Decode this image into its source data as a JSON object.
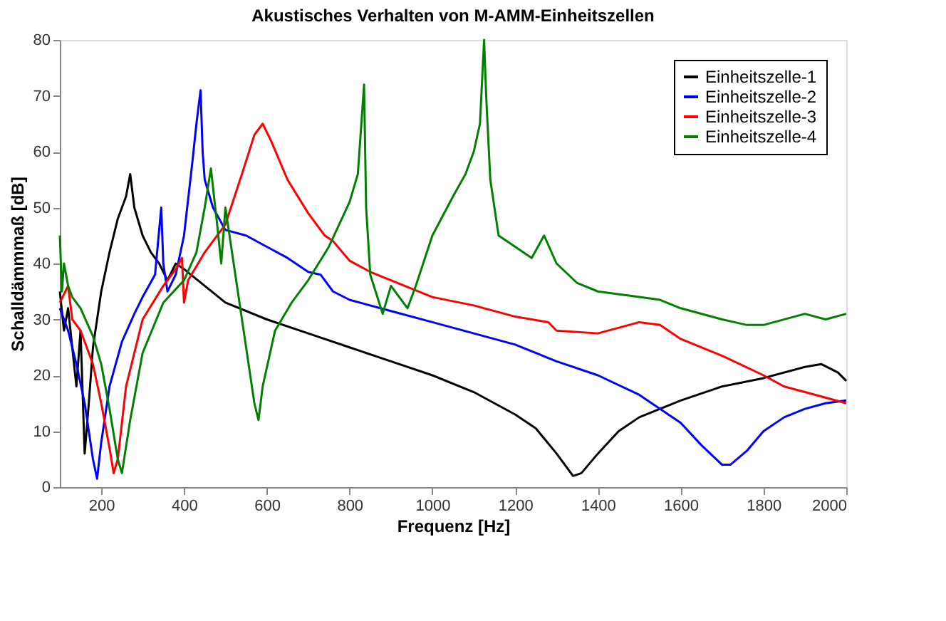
{
  "chart_data": {
    "type": "line",
    "title": "Akustisches Verhalten von M-AMM-Einheitszellen",
    "xlabel": "Frequenz [Hz]",
    "ylabel": "Schalldämmmaß [dB]",
    "xlim": [
      100,
      2000
    ],
    "xticks": [
      200,
      400,
      600,
      800,
      1000,
      1200,
      1400,
      1600,
      1800,
      2000
    ],
    "ylim": [
      0,
      80
    ],
    "yticks": [
      0,
      10,
      20,
      30,
      40,
      50,
      60,
      70,
      80
    ],
    "grid": false,
    "legend": "top right",
    "line_style": "solid",
    "marker": "none",
    "series": [
      {
        "name": "Einheitszelle-1",
        "color": "#000000",
        "x": [
          100,
          110,
          120,
          130,
          140,
          150,
          160,
          170,
          180,
          200,
          220,
          240,
          260,
          270,
          280,
          300,
          320,
          340,
          360,
          380,
          400,
          450,
          500,
          600,
          700,
          800,
          900,
          1000,
          1100,
          1200,
          1250,
          1300,
          1340,
          1360,
          1400,
          1450,
          1500,
          1600,
          1700,
          1800,
          1900,
          1940,
          1980,
          2000
        ],
        "values": [
          35,
          28,
          32,
          25,
          18,
          28,
          6,
          15,
          25,
          35,
          42,
          48,
          52,
          56,
          50,
          45,
          42,
          40,
          37,
          40,
          39,
          36,
          33,
          30,
          27.5,
          25,
          22.5,
          20,
          17,
          13,
          10.5,
          6,
          2,
          2.5,
          6,
          10,
          12.5,
          15.5,
          18,
          19.5,
          21.5,
          22,
          20.5,
          19
        ]
      },
      {
        "name": "Einheitszelle-2",
        "color": "#0000ff",
        "x": [
          100,
          120,
          140,
          160,
          180,
          190,
          200,
          220,
          250,
          280,
          300,
          330,
          345,
          350,
          360,
          380,
          400,
          420,
          430,
          440,
          445,
          450,
          470,
          500,
          550,
          600,
          650,
          700,
          730,
          760,
          800,
          900,
          1000,
          1100,
          1200,
          1300,
          1400,
          1500,
          1600,
          1650,
          1700,
          1720,
          1760,
          1800,
          1850,
          1900,
          1950,
          2000
        ],
        "values": [
          32,
          28,
          22,
          15,
          5,
          1.5,
          8,
          18,
          26,
          31,
          34,
          38,
          50,
          40,
          35,
          38,
          45,
          58,
          65,
          71,
          60,
          55,
          50,
          46,
          45,
          43,
          41,
          38.5,
          38,
          35,
          33.5,
          31.5,
          29.5,
          27.5,
          25.5,
          22.5,
          20,
          16.5,
          11.5,
          7.5,
          4,
          4,
          6.5,
          10,
          12.5,
          14,
          15,
          15.5
        ]
      },
      {
        "name": "Einheitszelle-3",
        "color": "#ff0000",
        "x": [
          100,
          120,
          130,
          150,
          180,
          200,
          220,
          230,
          240,
          260,
          300,
          350,
          380,
          395,
          400,
          410,
          450,
          500,
          540,
          570,
          590,
          610,
          650,
          700,
          740,
          760,
          800,
          850,
          900,
          950,
          1000,
          1100,
          1200,
          1280,
          1300,
          1400,
          1500,
          1550,
          1600,
          1700,
          1800,
          1850,
          1900,
          2000
        ],
        "values": [
          33,
          36,
          30,
          28,
          22,
          15,
          7,
          2.5,
          5,
          18,
          30,
          36,
          39,
          41,
          33,
          37,
          42,
          47,
          56,
          63,
          65,
          62,
          55,
          49,
          45,
          44,
          40.5,
          38.5,
          37,
          35.5,
          34,
          32.5,
          30.5,
          29.5,
          28,
          27.5,
          29.5,
          29,
          26.5,
          23.5,
          20,
          18,
          17,
          15
        ]
      },
      {
        "name": "Einheitszelle-4",
        "color": "#008000",
        "x": [
          100,
          105,
          110,
          120,
          130,
          150,
          180,
          200,
          220,
          240,
          250,
          270,
          300,
          350,
          400,
          430,
          450,
          465,
          480,
          490,
          500,
          520,
          550,
          570,
          580,
          590,
          620,
          660,
          700,
          750,
          800,
          820,
          835,
          840,
          850,
          880,
          900,
          920,
          940,
          960,
          1000,
          1050,
          1080,
          1100,
          1115,
          1125,
          1130,
          1140,
          1160,
          1200,
          1240,
          1270,
          1300,
          1350,
          1400,
          1500,
          1550,
          1600,
          1700,
          1760,
          1800,
          1900,
          1950,
          2000
        ],
        "values": [
          45,
          35,
          40,
          36,
          34,
          32,
          27,
          22,
          14,
          5,
          2.5,
          12,
          24,
          33,
          37,
          42,
          50,
          57,
          47,
          40,
          50,
          40,
          25,
          15,
          12,
          18,
          28,
          33,
          37,
          43,
          51,
          56,
          72,
          50,
          38,
          31,
          36,
          34,
          32,
          36,
          45,
          52,
          56,
          60,
          65,
          80,
          70,
          55,
          45,
          43,
          41,
          45,
          40,
          36.5,
          35,
          34,
          33.5,
          32,
          30,
          29,
          29,
          31,
          30,
          31
        ]
      }
    ]
  }
}
